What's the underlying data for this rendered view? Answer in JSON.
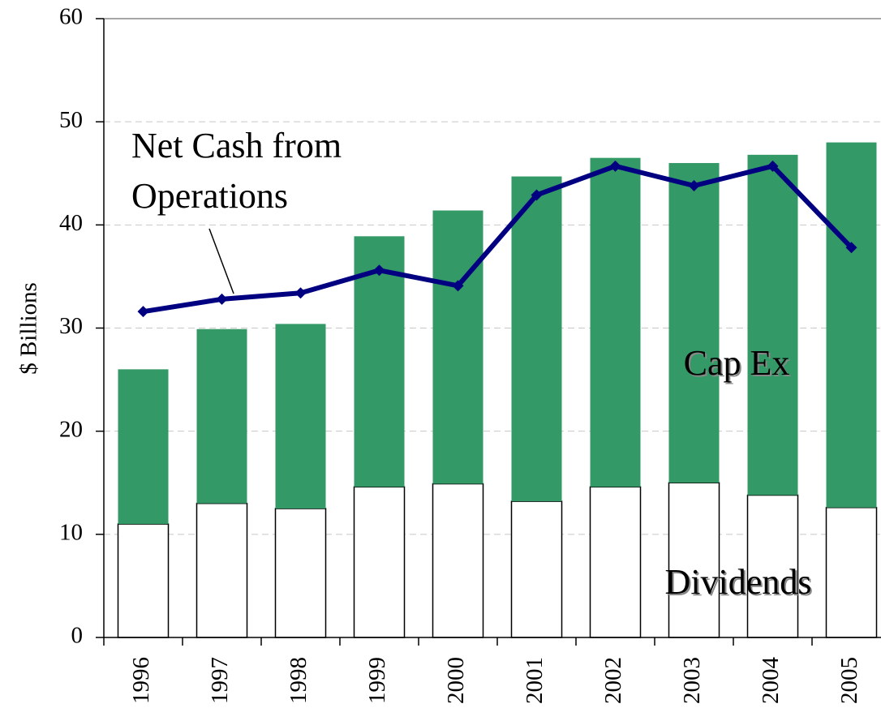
{
  "chart_data": {
    "type": "bar",
    "stacked": true,
    "y_label": "$ Billions",
    "categories": [
      "1996",
      "1997",
      "1998",
      "1999",
      "2000",
      "2001",
      "2002",
      "2003",
      "2004",
      "2005"
    ],
    "series": [
      {
        "name": "Dividends",
        "type": "bar",
        "color": "#ffffff",
        "values": [
          11,
          13,
          12.5,
          14.6,
          14.9,
          13.2,
          14.6,
          15,
          13.8,
          12.6
        ]
      },
      {
        "name": "Cap Ex",
        "type": "bar",
        "color": "#339966",
        "values": [
          15,
          16.9,
          17.9,
          24.3,
          26.5,
          31.5,
          31.9,
          31,
          33,
          35.4
        ]
      },
      {
        "name": "Net Cash from Operations",
        "type": "line",
        "color": "#000080",
        "values": [
          31.6,
          32.8,
          33.4,
          35.6,
          34.1,
          42.9,
          45.7,
          43.8,
          45.7,
          37.8
        ]
      }
    ],
    "annotations": [
      {
        "text": "Net Cash from"
      },
      {
        "text": "Operations"
      }
    ],
    "ylim": [
      0,
      60
    ],
    "yticks": [
      0,
      10,
      20,
      30,
      40,
      50,
      60
    ],
    "grid": true
  }
}
